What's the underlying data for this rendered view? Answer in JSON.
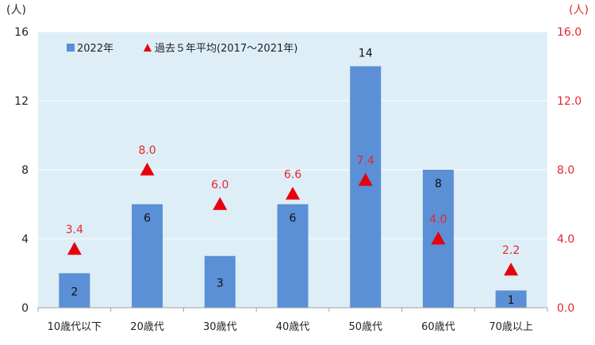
{
  "chart_data": {
    "type": "bar",
    "categories": [
      "10歳代以下",
      "20歳代",
      "30歳代",
      "40歳代",
      "50歳代",
      "60歳代",
      "70歳以上"
    ],
    "series": [
      {
        "name": "2022年",
        "type": "bar",
        "values": [
          2,
          6,
          3,
          6,
          14,
          8,
          1
        ],
        "color": "#5b8fd6"
      },
      {
        "name": "過去５年平均(2017～2021年)",
        "type": "marker",
        "marker": "triangle",
        "values": [
          3.4,
          8.0,
          6.0,
          6.6,
          7.4,
          4.0,
          2.2
        ],
        "color": "#e8000d"
      }
    ],
    "bar_labels": [
      "2",
      "6",
      "3",
      "6",
      "14",
      "8",
      "1"
    ],
    "avg_labels": [
      "3.4",
      "8.0",
      "6.0",
      "6.6",
      "7.4",
      "4.0",
      "2.2"
    ],
    "y_left": {
      "unit_label": "(人)",
      "ylim": [
        0,
        16
      ],
      "ticks": [
        "0",
        "4",
        "8",
        "12",
        "16"
      ]
    },
    "y_right": {
      "unit_label": "(人)",
      "ylim": [
        0,
        16
      ],
      "ticks": [
        "0.0",
        "4.0",
        "8.0",
        "12.0",
        "16.0"
      ]
    },
    "legend": {
      "position": "top-left"
    },
    "grid": true,
    "colors": {
      "plot_bg": "#ddeef7",
      "grid": "#ffffff",
      "right_axis_text": "#e8252d"
    }
  }
}
